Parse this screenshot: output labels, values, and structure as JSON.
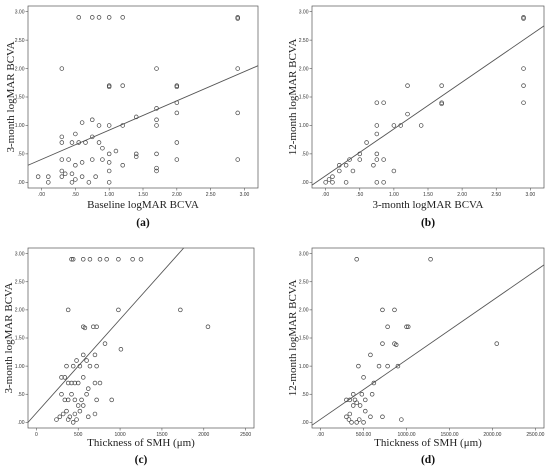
{
  "chart_data": [
    {
      "type": "scatter",
      "panel_label": "(a)",
      "xlabel": "Baseline logMAR BCVA",
      "ylabel": "3-month logMAR BCVA",
      "xlim": [
        -0.2,
        3.2
      ],
      "ylim": [
        -0.1,
        3.1
      ],
      "xticks": [
        0,
        0.5,
        1,
        1.5,
        2,
        2.5,
        3
      ],
      "xtick_labels": [
        ".00",
        ".50",
        "1.00",
        "1.50",
        "2.00",
        "2.50",
        "3.00"
      ],
      "yticks": [
        0,
        0.5,
        1,
        1.5,
        2,
        2.5,
        3
      ],
      "ytick_labels": [
        ".00",
        ".50",
        "1.00",
        "1.50",
        "2.00",
        "2.50",
        "3.00"
      ],
      "fit_line": {
        "x0": -0.2,
        "y0": 0.3,
        "x1": 3.2,
        "y1": 2.05
      },
      "points": [
        [
          0.3,
          2.0
        ],
        [
          0.55,
          2.9
        ],
        [
          0.75,
          2.9
        ],
        [
          0.85,
          2.9
        ],
        [
          1.0,
          2.9
        ],
        [
          1.2,
          2.9
        ],
        [
          2.9,
          2.9
        ],
        [
          2.9,
          2.88
        ],
        [
          1.0,
          1.7
        ],
        [
          1.0,
          1.68
        ],
        [
          1.2,
          1.7
        ],
        [
          1.7,
          2.0
        ],
        [
          2.0,
          1.7
        ],
        [
          2.0,
          1.68
        ],
        [
          2.9,
          2.0
        ],
        [
          2.0,
          1.4
        ],
        [
          2.0,
          1.22
        ],
        [
          2.9,
          1.22
        ],
        [
          1.7,
          1.3
        ],
        [
          1.7,
          1.1
        ],
        [
          1.7,
          1.0
        ],
        [
          1.4,
          1.15
        ],
        [
          1.2,
          1.0
        ],
        [
          1.0,
          1.0
        ],
        [
          0.85,
          1.0
        ],
        [
          0.75,
          1.1
        ],
        [
          0.6,
          1.05
        ],
        [
          0.5,
          0.85
        ],
        [
          0.3,
          0.8
        ],
        [
          0.3,
          0.7
        ],
        [
          0.45,
          0.7
        ],
        [
          0.55,
          0.7
        ],
        [
          0.65,
          0.7
        ],
        [
          0.75,
          0.8
        ],
        [
          0.85,
          0.7
        ],
        [
          0.9,
          0.6
        ],
        [
          1.0,
          0.5
        ],
        [
          1.1,
          0.55
        ],
        [
          1.4,
          0.5
        ],
        [
          1.7,
          0.5
        ],
        [
          2.0,
          0.7
        ],
        [
          0.3,
          0.4
        ],
        [
          0.4,
          0.4
        ],
        [
          0.5,
          0.3
        ],
        [
          0.6,
          0.35
        ],
        [
          0.75,
          0.4
        ],
        [
          0.9,
          0.4
        ],
        [
          1.0,
          0.35
        ],
        [
          1.2,
          0.3
        ],
        [
          1.4,
          0.45
        ],
        [
          1.7,
          0.2
        ],
        [
          1.7,
          0.25
        ],
        [
          2.0,
          0.4
        ],
        [
          2.9,
          0.4
        ],
        [
          -0.05,
          0.1
        ],
        [
          0.1,
          0.1
        ],
        [
          0.1,
          0.0
        ],
        [
          0.3,
          0.1
        ],
        [
          0.35,
          0.15
        ],
        [
          0.45,
          0.0
        ],
        [
          0.5,
          0.05
        ],
        [
          0.6,
          0.1
        ],
        [
          0.7,
          0.0
        ],
        [
          0.8,
          0.1
        ],
        [
          1.0,
          0.0
        ],
        [
          1.0,
          0.2
        ],
        [
          0.3,
          0.2
        ],
        [
          0.45,
          0.15
        ]
      ]
    },
    {
      "type": "scatter",
      "panel_label": "(b)",
      "xlabel": "3-month logMAR BCVA",
      "ylabel": "12-month logMAR BCVA",
      "xlim": [
        -0.2,
        3.2
      ],
      "ylim": [
        -0.1,
        3.1
      ],
      "xticks": [
        0,
        0.5,
        1,
        1.5,
        2,
        2.5,
        3
      ],
      "xtick_labels": [
        ".00",
        ".50",
        "1.00",
        "1.50",
        "2.00",
        "2.50",
        "3.00"
      ],
      "yticks": [
        0,
        0.5,
        1,
        1.5,
        2,
        2.5,
        3
      ],
      "ytick_labels": [
        ".00",
        ".50",
        "1.00",
        "1.50",
        "2.00",
        "2.50",
        "3.00"
      ],
      "fit_line": {
        "x0": -0.2,
        "y0": -0.05,
        "x1": 3.2,
        "y1": 2.75
      },
      "points": [
        [
          2.9,
          2.9
        ],
        [
          2.9,
          2.88
        ],
        [
          2.9,
          2.0
        ],
        [
          2.9,
          1.7
        ],
        [
          2.9,
          1.4
        ],
        [
          1.7,
          1.7
        ],
        [
          1.7,
          1.4
        ],
        [
          1.7,
          1.38
        ],
        [
          1.4,
          1.0
        ],
        [
          1.2,
          1.7
        ],
        [
          1.2,
          1.2
        ],
        [
          1.1,
          1.0
        ],
        [
          1.0,
          1.0
        ],
        [
          0.85,
          1.4
        ],
        [
          0.75,
          1.4
        ],
        [
          0.75,
          1.0
        ],
        [
          0.75,
          0.85
        ],
        [
          0.75,
          0.5
        ],
        [
          0.85,
          0.4
        ],
        [
          0.75,
          0.4
        ],
        [
          0.7,
          0.3
        ],
        [
          0.6,
          0.7
        ],
        [
          0.5,
          0.4
        ],
        [
          0.5,
          0.5
        ],
        [
          0.4,
          0.2
        ],
        [
          0.35,
          0.4
        ],
        [
          0.3,
          0.3
        ],
        [
          0.2,
          0.2
        ],
        [
          0.1,
          0.1
        ],
        [
          0.0,
          0.0
        ],
        [
          0.05,
          0.05
        ],
        [
          0.1,
          0.0
        ],
        [
          0.3,
          0.0
        ],
        [
          0.75,
          0.0
        ],
        [
          0.85,
          0.0
        ],
        [
          1.0,
          0.2
        ],
        [
          0.2,
          0.3
        ]
      ]
    },
    {
      "type": "scatter",
      "panel_label": "(c)",
      "xlabel": "Thickness of SMH (μm)",
      "ylabel": "3-month logMAR BCVA",
      "xlim": [
        -100,
        2600
      ],
      "ylim": [
        -0.1,
        3.1
      ],
      "xticks": [
        0,
        500,
        1000,
        1500,
        2000,
        2500
      ],
      "xtick_labels": [
        "0",
        "500",
        "1000",
        "1500",
        "2000",
        "2500"
      ],
      "yticks": [
        0,
        0.5,
        1,
        1.5,
        2,
        2.5,
        3
      ],
      "ytick_labels": [
        ".00",
        ".50",
        "1.00",
        "1.50",
        "2.00",
        "2.50",
        "3.00"
      ],
      "fit_line": {
        "x0": -100,
        "y0": 0.0,
        "x1": 1760,
        "y1": 3.1
      },
      "points": [
        [
          420,
          2.9
        ],
        [
          440,
          2.9
        ],
        [
          560,
          2.9
        ],
        [
          640,
          2.9
        ],
        [
          760,
          2.9
        ],
        [
          840,
          2.9
        ],
        [
          980,
          2.9
        ],
        [
          1150,
          2.9
        ],
        [
          1250,
          2.9
        ],
        [
          380,
          2.0
        ],
        [
          980,
          2.0
        ],
        [
          1720,
          2.0
        ],
        [
          2050,
          1.7
        ],
        [
          560,
          1.7
        ],
        [
          580,
          1.68
        ],
        [
          680,
          1.7
        ],
        [
          720,
          1.7
        ],
        [
          1010,
          1.3
        ],
        [
          820,
          1.4
        ],
        [
          560,
          1.2
        ],
        [
          600,
          1.1
        ],
        [
          480,
          1.1
        ],
        [
          440,
          1.0
        ],
        [
          360,
          1.0
        ],
        [
          520,
          1.0
        ],
        [
          640,
          1.0
        ],
        [
          700,
          1.2
        ],
        [
          720,
          1.0
        ],
        [
          300,
          0.8
        ],
        [
          340,
          0.8
        ],
        [
          380,
          0.7
        ],
        [
          420,
          0.7
        ],
        [
          460,
          0.7
        ],
        [
          500,
          0.7
        ],
        [
          560,
          0.8
        ],
        [
          620,
          0.6
        ],
        [
          700,
          0.7
        ],
        [
          760,
          0.7
        ],
        [
          300,
          0.5
        ],
        [
          340,
          0.4
        ],
        [
          380,
          0.4
        ],
        [
          420,
          0.5
        ],
        [
          460,
          0.4
        ],
        [
          500,
          0.3
        ],
        [
          540,
          0.4
        ],
        [
          600,
          0.5
        ],
        [
          720,
          0.4
        ],
        [
          900,
          0.4
        ],
        [
          280,
          0.1
        ],
        [
          320,
          0.15
        ],
        [
          360,
          0.2
        ],
        [
          400,
          0.1
        ],
        [
          440,
          0.0
        ],
        [
          480,
          0.05
        ],
        [
          520,
          0.2
        ],
        [
          560,
          0.3
        ],
        [
          620,
          0.1
        ],
        [
          700,
          0.15
        ],
        [
          240,
          0.05
        ],
        [
          380,
          0.05
        ],
        [
          460,
          0.15
        ]
      ]
    },
    {
      "type": "scatter",
      "panel_label": "(d)",
      "xlabel": "Thickness of SMH (μm)",
      "ylabel": "12-month logMAR BCVA",
      "xlim": [
        -100,
        2600
      ],
      "ylim": [
        -0.1,
        3.1
      ],
      "xticks": [
        0,
        500,
        1000,
        1500,
        2000,
        2500
      ],
      "xtick_labels": [
        ".00",
        "500.00",
        "1000.00",
        "1500.00",
        "2000.00",
        "2500.00"
      ],
      "yticks": [
        0,
        0.5,
        1,
        1.5,
        2,
        2.5,
        3
      ],
      "ytick_labels": [
        ".00",
        ".50",
        "1.00",
        "1.50",
        "2.00",
        "2.50",
        "3.00"
      ],
      "fit_line": {
        "x0": -100,
        "y0": -0.05,
        "x1": 2600,
        "y1": 2.8
      },
      "points": [
        [
          420,
          2.9
        ],
        [
          1280,
          2.9
        ],
        [
          720,
          2.0
        ],
        [
          860,
          2.0
        ],
        [
          1000,
          1.7
        ],
        [
          1020,
          1.7
        ],
        [
          780,
          1.7
        ],
        [
          2050,
          1.4
        ],
        [
          860,
          1.4
        ],
        [
          880,
          1.38
        ],
        [
          720,
          1.4
        ],
        [
          580,
          1.2
        ],
        [
          680,
          1.0
        ],
        [
          780,
          1.0
        ],
        [
          900,
          1.0
        ],
        [
          440,
          1.0
        ],
        [
          500,
          0.8
        ],
        [
          620,
          0.7
        ],
        [
          600,
          0.5
        ],
        [
          480,
          0.5
        ],
        [
          380,
          0.5
        ],
        [
          300,
          0.4
        ],
        [
          340,
          0.4
        ],
        [
          400,
          0.4
        ],
        [
          460,
          0.3
        ],
        [
          520,
          0.2
        ],
        [
          580,
          0.1
        ],
        [
          720,
          0.1
        ],
        [
          940,
          0.05
        ],
        [
          300,
          0.1
        ],
        [
          330,
          0.05
        ],
        [
          360,
          0.0
        ],
        [
          420,
          0.0
        ],
        [
          450,
          0.05
        ],
        [
          500,
          0.0
        ],
        [
          340,
          0.15
        ],
        [
          520,
          0.4
        ],
        [
          380,
          0.3
        ],
        [
          420,
          0.35
        ]
      ]
    }
  ]
}
